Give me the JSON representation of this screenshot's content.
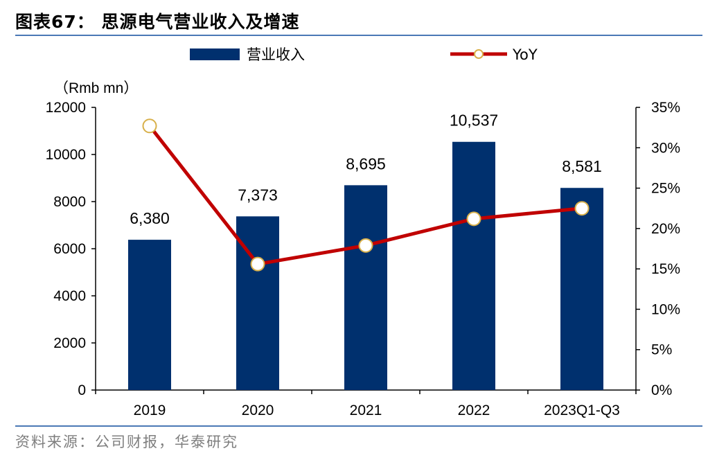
{
  "figure": {
    "title": "图表67：  思源电气营业收入及增速",
    "source": "资料来源：公司财报，华泰研究"
  },
  "chart_data": {
    "type": "bar",
    "categories": [
      "2019",
      "2020",
      "2021",
      "2022",
      "2023Q1-Q3"
    ],
    "series": [
      {
        "name": "营业收入",
        "type": "bar",
        "axis": "left",
        "color": "#00306e",
        "values": [
          6380,
          7373,
          8695,
          10537,
          8581
        ],
        "labels": [
          "6,380",
          "7,373",
          "8,695",
          "10,537",
          "8,581"
        ]
      },
      {
        "name": "YoY",
        "type": "line",
        "axis": "right",
        "color": "#c00000",
        "marker_edge": "#d8b04a",
        "values": [
          32.7,
          15.6,
          17.9,
          21.2,
          22.5
        ]
      }
    ],
    "y_left": {
      "label": "（Rmb mn）",
      "lim": [
        0,
        12000
      ],
      "ticks": [
        "0",
        "2000",
        "4000",
        "6000",
        "8000",
        "10000",
        "12000"
      ]
    },
    "y_right": {
      "lim": [
        0,
        35
      ],
      "ticks": [
        "0%",
        "5%",
        "10%",
        "15%",
        "20%",
        "25%",
        "30%",
        "35%"
      ]
    },
    "grid": false,
    "legend": "top-center"
  }
}
